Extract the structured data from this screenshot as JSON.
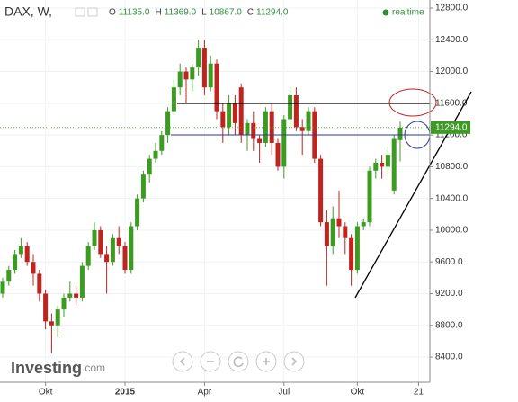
{
  "chart_data": {
    "type": "candlestick",
    "title": "DAX, W,",
    "header": [
      {
        "label": "O",
        "value": "11135.0"
      },
      {
        "label": "H",
        "value": "11369.0"
      },
      {
        "label": "L",
        "value": "10867.0"
      },
      {
        "label": "C",
        "value": "11294.0"
      }
    ],
    "realtime": "realtime",
    "last_price_label": "11294.0",
    "logo": "Investing",
    "logo_suffix": ".com",
    "up_color": "#3c9c22",
    "down_color": "#c0241f",
    "grid": true,
    "ylim": [
      8083,
      12902
    ],
    "yticks": [
      {
        "value": 12800,
        "label": "12800.0"
      },
      {
        "value": 12400,
        "label": "12400.0"
      },
      {
        "value": 12000,
        "label": "12000.0"
      },
      {
        "value": 11600,
        "label": "11600.0"
      },
      {
        "value": 11200,
        "label": "11200.0"
      },
      {
        "value": 10800,
        "label": "10800.0"
      },
      {
        "value": 10400,
        "label": "10400.0"
      },
      {
        "value": 10000,
        "label": "10000.0"
      },
      {
        "value": 9600,
        "label": "9600.0"
      },
      {
        "value": 9200,
        "label": "9200.0"
      },
      {
        "value": 8800,
        "label": "8800.0"
      },
      {
        "value": 8400,
        "label": "8400.0"
      }
    ],
    "categories": [
      null,
      null,
      null,
      null,
      null,
      null,
      null,
      "Okt",
      null,
      null,
      null,
      null,
      null,
      null,
      null,
      null,
      null,
      null,
      null,
      null,
      "2015",
      null,
      null,
      null,
      null,
      null,
      null,
      null,
      null,
      null,
      null,
      null,
      null,
      "Apr",
      null,
      null,
      null,
      null,
      null,
      null,
      null,
      null,
      null,
      null,
      null,
      null,
      "Jul",
      null,
      null,
      null,
      null,
      null,
      null,
      null,
      null,
      null,
      null,
      null,
      "Okt",
      null,
      null,
      null,
      null,
      null,
      null,
      null,
      null,
      null,
      "21"
    ],
    "open": [
      9200,
      9350,
      9500,
      9700,
      9800,
      9600,
      9450,
      9200,
      8850,
      8800,
      9000,
      9150,
      9200,
      9150,
      9550,
      9800,
      10000,
      9700,
      9600,
      9900,
      9800,
      9500,
      10050,
      10400,
      10700,
      10900,
      11000,
      11200,
      11500,
      11800,
      12000,
      11900,
      12050,
      12300,
      11800,
      12100,
      11500,
      11300,
      11600,
      11800,
      11200,
      11350,
      11150,
      11100,
      11500,
      11100,
      10800,
      11400,
      11700,
      11300,
      11250,
      11500,
      10900,
      10100,
      9800,
      10150,
      10050,
      9900,
      9500,
      10050,
      10100,
      10750,
      10850,
      10800,
      10500,
      11135,
      null,
      null,
      null
    ],
    "high": [
      9400,
      9550,
      9750,
      9900,
      9850,
      9700,
      9500,
      9250,
      8950,
      9050,
      9200,
      9350,
      9300,
      9600,
      9850,
      10100,
      10050,
      9800,
      9950,
      10050,
      9850,
      10100,
      10450,
      10750,
      10950,
      11100,
      11250,
      11550,
      11900,
      12100,
      12050,
      12100,
      12400,
      12400,
      12200,
      12150,
      11600,
      11700,
      11700,
      11850,
      11400,
      11500,
      11200,
      11550,
      11600,
      11150,
      11450,
      11800,
      11800,
      11400,
      11550,
      11550,
      10950,
      10250,
      10300,
      10500,
      10100,
      9950,
      10100,
      10150,
      10800,
      10900,
      10950,
      11050,
      11200,
      11369,
      null,
      null,
      null
    ],
    "low": [
      9150,
      9300,
      9450,
      9650,
      9550,
      9300,
      9100,
      8750,
      8450,
      8650,
      8900,
      9100,
      9050,
      9100,
      9500,
      9750,
      9650,
      9200,
      9550,
      9700,
      9450,
      9450,
      10000,
      10350,
      10600,
      10850,
      10950,
      11100,
      11450,
      11700,
      11600,
      11750,
      11950,
      11700,
      11750,
      11400,
      11100,
      11200,
      11200,
      11100,
      11000,
      11000,
      10850,
      11050,
      10950,
      10750,
      10650,
      11300,
      11250,
      10950,
      11200,
      10850,
      10050,
      9300,
      9700,
      9900,
      9700,
      9300,
      9450,
      10000,
      10050,
      10650,
      10650,
      10700,
      10450,
      10867,
      null,
      null,
      null
    ],
    "close": [
      9350,
      9500,
      9700,
      9800,
      9600,
      9450,
      9200,
      8850,
      8800,
      9000,
      9150,
      9200,
      9150,
      9550,
      9800,
      10000,
      9700,
      9600,
      9900,
      9800,
      9500,
      10050,
      10400,
      10700,
      10900,
      11000,
      11200,
      11500,
      11800,
      12000,
      11900,
      12050,
      12300,
      11800,
      12100,
      11500,
      11300,
      11600,
      11350,
      11200,
      11350,
      11150,
      11100,
      11500,
      11100,
      10800,
      11400,
      11700,
      11300,
      11250,
      11500,
      10900,
      10100,
      9800,
      10150,
      10050,
      9900,
      9500,
      10050,
      10100,
      10750,
      10850,
      10800,
      10950,
      11150,
      11294,
      null,
      null,
      null
    ]
  }
}
